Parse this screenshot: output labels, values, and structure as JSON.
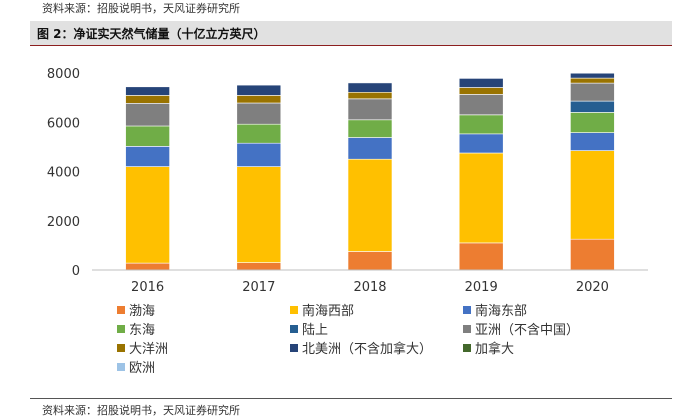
{
  "source_top": "资料来源：招股说明书，天风证券研究所",
  "figure_title": "图 2：净证实天然气储量（十亿立方英尺）",
  "source_bottom": "资料来源：招股说明书，天风证券研究所",
  "chart_data": {
    "type": "bar",
    "stacked": true,
    "title": "",
    "xlabel": "",
    "ylabel": "",
    "categories": [
      "2016",
      "2017",
      "2018",
      "2019",
      "2020"
    ],
    "ylim": [
      0,
      8000
    ],
    "yticks": [
      0,
      2000,
      4000,
      6000,
      8000
    ],
    "grid": false,
    "legend_position": "bottom",
    "series": [
      {
        "name": "渤海",
        "color": "#ED7D31",
        "values": [
          280,
          300,
          750,
          1100,
          1250
        ]
      },
      {
        "name": "南海西部",
        "color": "#FFC000",
        "values": [
          3920,
          3900,
          3750,
          3650,
          3600
        ]
      },
      {
        "name": "南海东部",
        "color": "#4472C4",
        "values": [
          820,
          950,
          880,
          780,
          730
        ]
      },
      {
        "name": "东海",
        "color": "#70AD47",
        "values": [
          830,
          770,
          720,
          770,
          820
        ]
      },
      {
        "name": "陆上",
        "color": "#255E91",
        "values": [
          0,
          0,
          0,
          0,
          460
        ]
      },
      {
        "name": "亚洲（不含中国）",
        "color": "#7F7F7F",
        "values": [
          920,
          860,
          850,
          830,
          730
        ]
      },
      {
        "name": "大洋洲",
        "color": "#997300",
        "values": [
          320,
          310,
          270,
          280,
          200
        ]
      },
      {
        "name": "北美洲（不含加拿大）",
        "color": "#264478",
        "values": [
          350,
          420,
          380,
          370,
          200
        ]
      },
      {
        "name": "加拿大",
        "color": "#43682B",
        "values": [
          0,
          0,
          0,
          0,
          0
        ]
      },
      {
        "name": "欧洲",
        "color": "#9DC3E6",
        "values": [
          0,
          0,
          0,
          0,
          0
        ]
      }
    ]
  }
}
